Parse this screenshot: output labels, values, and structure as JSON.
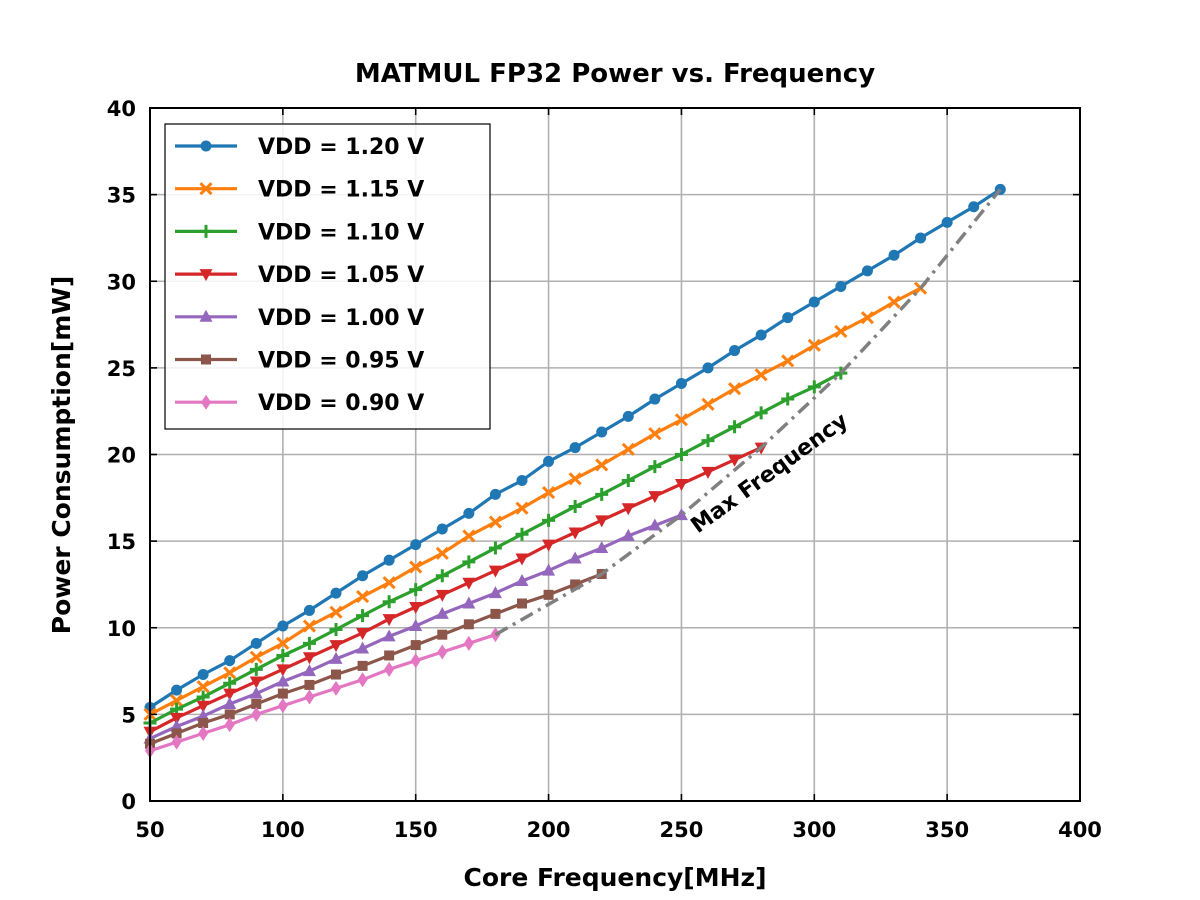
{
  "chart_data": {
    "type": "line",
    "title": "MATMUL FP32 Power vs. Frequency",
    "xlabel": "Core Frequency[MHz]",
    "ylabel": "Power Consumption[mW]",
    "xlim": [
      50,
      400
    ],
    "ylim": [
      0,
      40
    ],
    "xticks": [
      50,
      100,
      150,
      200,
      250,
      300,
      350,
      400
    ],
    "yticks": [
      0,
      5,
      10,
      15,
      20,
      25,
      30,
      35,
      40
    ],
    "grid": true,
    "legend_position": "top-left",
    "series": [
      {
        "name": "VDD = 1.20 V",
        "color": "#1f77b4",
        "marker": "circle",
        "x": [
          50,
          60,
          70,
          80,
          90,
          100,
          110,
          120,
          130,
          140,
          150,
          160,
          170,
          180,
          190,
          200,
          210,
          220,
          230,
          240,
          250,
          260,
          270,
          280,
          290,
          300,
          310,
          320,
          330,
          340,
          350,
          360,
          370
        ],
        "y": [
          5.4,
          6.4,
          7.3,
          8.1,
          9.1,
          10.1,
          11.0,
          12.0,
          13.0,
          13.9,
          14.8,
          15.7,
          16.6,
          17.7,
          18.5,
          19.6,
          20.4,
          21.3,
          22.2,
          23.2,
          24.1,
          25.0,
          26.0,
          26.9,
          27.9,
          28.8,
          29.7,
          30.6,
          31.5,
          32.5,
          33.4,
          34.3,
          35.3
        ]
      },
      {
        "name": "VDD = 1.15 V",
        "color": "#ff7f0e",
        "marker": "x",
        "x": [
          50,
          60,
          70,
          80,
          90,
          100,
          110,
          120,
          130,
          140,
          150,
          160,
          170,
          180,
          190,
          200,
          210,
          220,
          230,
          240,
          250,
          260,
          270,
          280,
          290,
          300,
          310,
          320,
          330,
          340
        ],
        "y": [
          5.0,
          5.8,
          6.6,
          7.4,
          8.3,
          9.1,
          10.1,
          10.9,
          11.8,
          12.6,
          13.5,
          14.3,
          15.3,
          16.1,
          16.9,
          17.8,
          18.6,
          19.4,
          20.3,
          21.2,
          22.0,
          22.9,
          23.8,
          24.6,
          25.4,
          26.3,
          27.1,
          27.9,
          28.8,
          29.6
        ]
      },
      {
        "name": "VDD = 1.10 V",
        "color": "#2ca02c",
        "marker": "plus",
        "x": [
          50,
          60,
          70,
          80,
          90,
          100,
          110,
          120,
          130,
          140,
          150,
          160,
          170,
          180,
          190,
          200,
          210,
          220,
          230,
          240,
          250,
          260,
          270,
          280,
          290,
          300,
          310
        ],
        "y": [
          4.5,
          5.3,
          6.0,
          6.8,
          7.6,
          8.4,
          9.1,
          9.9,
          10.7,
          11.5,
          12.2,
          13.0,
          13.8,
          14.6,
          15.4,
          16.2,
          17.0,
          17.7,
          18.5,
          19.3,
          20.0,
          20.8,
          21.6,
          22.4,
          23.2,
          23.9,
          24.7
        ]
      },
      {
        "name": "VDD = 1.05 V",
        "color": "#d62728",
        "marker": "triangle-down",
        "x": [
          50,
          60,
          70,
          80,
          90,
          100,
          110,
          120,
          130,
          140,
          150,
          160,
          170,
          180,
          190,
          200,
          210,
          220,
          230,
          240,
          250,
          260,
          270,
          280
        ],
        "y": [
          4.0,
          4.8,
          5.5,
          6.2,
          6.9,
          7.6,
          8.3,
          9.0,
          9.7,
          10.5,
          11.2,
          11.9,
          12.6,
          13.3,
          14.0,
          14.8,
          15.5,
          16.2,
          16.9,
          17.6,
          18.3,
          19.0,
          19.7,
          20.4
        ]
      },
      {
        "name": "VDD = 1.00 V",
        "color": "#9467bd",
        "marker": "triangle-up",
        "x": [
          50,
          60,
          70,
          80,
          90,
          100,
          110,
          120,
          130,
          140,
          150,
          160,
          170,
          180,
          190,
          200,
          210,
          220,
          230,
          240,
          250
        ],
        "y": [
          3.6,
          4.3,
          4.9,
          5.6,
          6.2,
          6.9,
          7.5,
          8.2,
          8.8,
          9.5,
          10.1,
          10.8,
          11.4,
          12.0,
          12.7,
          13.3,
          14.0,
          14.6,
          15.3,
          15.9,
          16.5
        ]
      },
      {
        "name": "VDD = 0.95 V",
        "color": "#8c564b",
        "marker": "square",
        "x": [
          50,
          60,
          70,
          80,
          90,
          100,
          110,
          120,
          130,
          140,
          150,
          160,
          170,
          180,
          190,
          200,
          210,
          220
        ],
        "y": [
          3.3,
          3.9,
          4.5,
          5.0,
          5.6,
          6.2,
          6.7,
          7.3,
          7.8,
          8.4,
          9.0,
          9.6,
          10.2,
          10.8,
          11.4,
          11.9,
          12.5,
          13.1
        ]
      },
      {
        "name": "VDD = 0.90 V",
        "color": "#e377c2",
        "marker": "diamond",
        "x": [
          50,
          60,
          70,
          80,
          90,
          100,
          110,
          120,
          130,
          140,
          150,
          160,
          170,
          180
        ],
        "y": [
          2.9,
          3.4,
          3.9,
          4.4,
          5.0,
          5.5,
          6.0,
          6.5,
          7.0,
          7.6,
          8.1,
          8.6,
          9.1,
          9.6
        ]
      }
    ],
    "max_frequency_line": {
      "label": "Max Frequency",
      "color": "#808080",
      "x": [
        180,
        220,
        250,
        280,
        310,
        340,
        370
      ],
      "y": [
        9.6,
        13.1,
        16.5,
        20.4,
        24.7,
        29.6,
        35.3
      ]
    }
  }
}
